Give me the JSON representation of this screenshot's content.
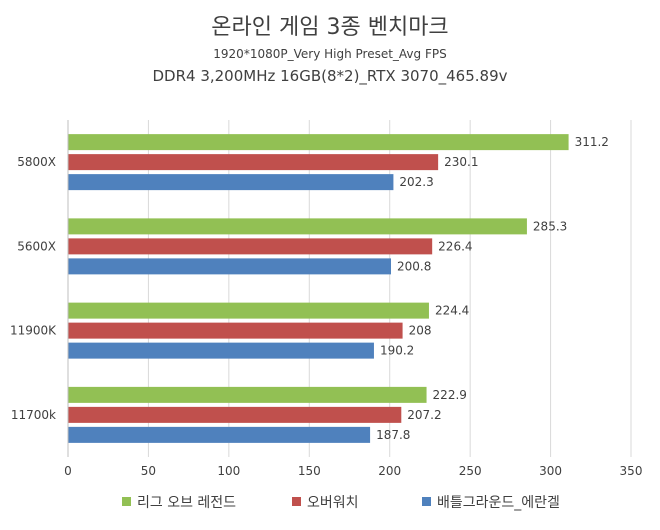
{
  "chart_data": {
    "type": "bar",
    "orientation": "horizontal",
    "title": "온라인 게임 3종 벤치마크",
    "subtitle": "1920*1080P_Very High Preset_Avg FPS",
    "subtitle2": "DDR4 3,200MHz 16GB(8*2)_RTX 3070_465.89v",
    "categories": [
      "5800X",
      "5600X",
      "11900K",
      "11700k"
    ],
    "series": [
      {
        "name": "리그 오브 레전드",
        "color": "#92c054",
        "values": [
          311.2,
          285.3,
          224.4,
          222.9
        ]
      },
      {
        "name": "오버워치",
        "color": "#c0504d",
        "values": [
          230.1,
          226.4,
          208,
          207.2
        ]
      },
      {
        "name": "배틀그라운드_에란겔",
        "color": "#4f81bd",
        "values": [
          202.3,
          200.8,
          190.2,
          187.8
        ]
      }
    ],
    "xlim": [
      0,
      350
    ],
    "xticks": [
      0,
      50,
      100,
      150,
      200,
      250,
      300,
      350
    ],
    "grid": true,
    "legend_position": "bottom"
  }
}
